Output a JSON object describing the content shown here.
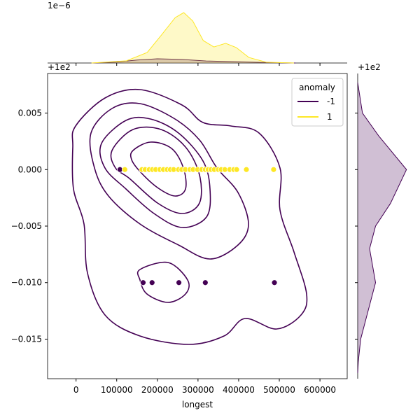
{
  "chart_data": {
    "type": "scatter",
    "xlabel": "longest",
    "xlim": [
      -70000,
      667000
    ],
    "ylim": [
      -0.0185,
      0.0085
    ],
    "xticks": [
      0,
      100000,
      200000,
      300000,
      400000,
      500000,
      600000
    ],
    "yticks": [
      0.005,
      {
        "value": 0,
        "label": "0.000"
      },
      {
        "value": -0.005,
        "label": "−0.005"
      },
      {
        "value": -0.01,
        "label": "−0.010"
      },
      {
        "value": -0.015,
        "label": "−0.015"
      }
    ],
    "y_offset_label": "+1e2",
    "legend_title": "anomaly",
    "legend": "upper right",
    "series": [
      {
        "name": "-1",
        "color": "#440154",
        "x": [
          108000,
          165000,
          187000,
          253000,
          318000,
          488000
        ],
        "y": [
          0,
          -0.01,
          -0.01,
          -0.01,
          -0.01,
          -0.01
        ]
      },
      {
        "name": "1",
        "color": "#fde725",
        "x": [
          120000,
          162000,
          170000,
          180000,
          188000,
          196000,
          206000,
          215000,
          224000,
          232000,
          240000,
          252000,
          260000,
          269000,
          280000,
          288000,
          299000,
          309000,
          318000,
          325000,
          332000,
          340000,
          350000,
          357000,
          366000,
          378000,
          388000,
          395000,
          419000,
          486000
        ],
        "y": [
          0,
          0,
          0,
          0,
          0,
          0,
          0,
          0,
          0,
          0,
          0,
          0,
          0,
          0,
          0,
          0,
          0,
          0,
          0,
          0,
          0,
          0,
          0,
          0,
          0,
          0,
          0,
          0,
          0,
          0
        ]
      }
    ],
    "marginal_x": {
      "offset_label": "1e−6",
      "ylim": [
        0,
        3
      ],
      "series": [
        {
          "color": "#440154",
          "x": [
            40000,
            100000,
            150000,
            200000,
            260000,
            320000,
            400000,
            470000,
            540000
          ],
          "values": [
            0,
            0.05,
            0.15,
            0.21,
            0.18,
            0.1,
            0.06,
            0.02,
            0
          ]
        },
        {
          "color": "#fde725",
          "x": [
            38000,
            124000,
            175000,
            210000,
            244000,
            265000,
            287000,
            313000,
            339000,
            368000,
            394000,
            425000,
            468000,
            536000
          ],
          "values": [
            0,
            0.11,
            0.53,
            1.41,
            2.29,
            2.54,
            2.12,
            1.13,
            0.81,
            0.99,
            0.78,
            0.28,
            0.04,
            0
          ]
        }
      ]
    },
    "marginal_y": {
      "offset_label": "+1e2",
      "xlim": [
        0,
        1
      ],
      "color": "#440154",
      "y": [
        0.0077,
        0.005,
        0.003,
        0,
        -0.003,
        -0.005,
        -0.007,
        -0.01,
        -0.013,
        -0.015,
        -0.017,
        -0.018
      ],
      "values": [
        0,
        0.08,
        0.35,
        0.82,
        0.55,
        0.3,
        0.2,
        0.3,
        0.15,
        0.05,
        0.01,
        0
      ]
    }
  }
}
